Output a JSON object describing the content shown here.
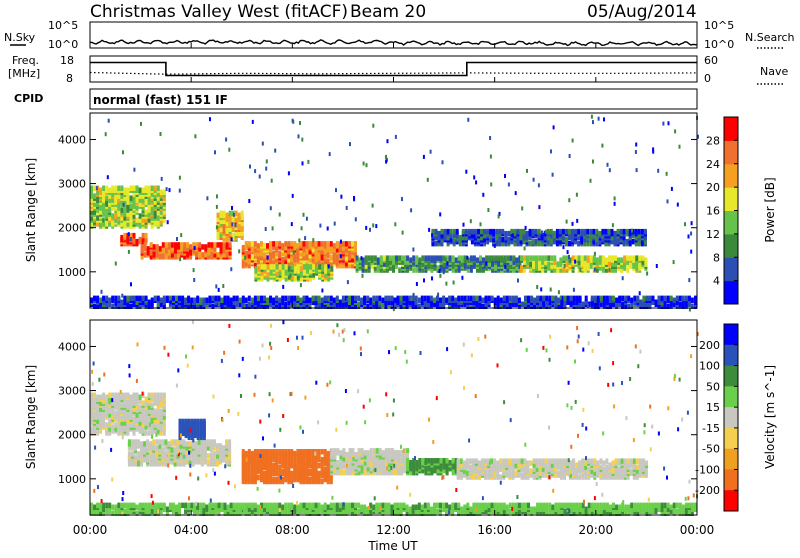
{
  "header": {
    "station": "Christmas Valley West (fitACF)",
    "beam": "Beam 20",
    "date": "05/Aug/2014"
  },
  "noise_panel": {
    "left_label": "N.Sky",
    "right_label": "N.Search",
    "left_ticks": [
      "10^5",
      "10^0"
    ],
    "right_ticks": [
      "10^5",
      "10^0"
    ]
  },
  "freq_panel": {
    "left_label_line1": "Freq.",
    "left_label_line2": "[MHz]",
    "right_label": "Nave",
    "left_ticks": [
      "18",
      "8"
    ],
    "right_ticks": [
      "60",
      "0"
    ]
  },
  "cpid_panel": {
    "label": "CPID",
    "mode_text": "normal (fast) 151 IF"
  },
  "chart_data": [
    {
      "type": "heatmap",
      "name": "power",
      "ylabel": "Slant Range [km]",
      "yticks": [
        1000,
        2000,
        3000,
        4000
      ],
      "ylim": [
        180,
        4600
      ],
      "colorbar": {
        "label": "Power [dB]",
        "ticks": [
          4,
          8,
          12,
          16,
          20,
          24,
          28
        ],
        "range": [
          0,
          32
        ],
        "colors": [
          "#0000ff",
          "#2c4fb3",
          "#3b8a3b",
          "#66c24a",
          "#e8e82a",
          "#f5a020",
          "#f07030",
          "#ff0000"
        ]
      },
      "bands": [
        {
          "t0": 0.0,
          "t1": 3.0,
          "r0": 2000,
          "r1": 2900,
          "level": 16
        },
        {
          "t0": 1.2,
          "t1": 2.2,
          "r0": 1600,
          "r1": 1800,
          "level": 28
        },
        {
          "t0": 2.0,
          "t1": 5.5,
          "r0": 1300,
          "r1": 1600,
          "level": 26
        },
        {
          "t0": 5.0,
          "t1": 6.0,
          "r0": 1700,
          "r1": 2300,
          "level": 20
        },
        {
          "t0": 6.0,
          "t1": 10.5,
          "r0": 1100,
          "r1": 1600,
          "level": 24
        },
        {
          "t0": 6.5,
          "t1": 9.5,
          "r0": 800,
          "r1": 1100,
          "level": 16
        },
        {
          "t0": 10.5,
          "t1": 12.5,
          "r0": 1000,
          "r1": 1300,
          "level": 12
        },
        {
          "t0": 12.5,
          "t1": 17.0,
          "r0": 1000,
          "r1": 1300,
          "level": 10
        },
        {
          "t0": 17.0,
          "t1": 22.0,
          "r0": 1000,
          "r1": 1300,
          "level": 16
        },
        {
          "t0": 13.5,
          "t1": 22.0,
          "r0": 1600,
          "r1": 1900,
          "level": 6
        },
        {
          "t0": 0.0,
          "t1": 24.0,
          "r0": 180,
          "r1": 400,
          "level": 4
        }
      ]
    },
    {
      "type": "heatmap",
      "name": "velocity",
      "ylabel": "Slant Range [km]",
      "yticks": [
        1000,
        2000,
        3000,
        4000
      ],
      "ylim": [
        180,
        4600
      ],
      "colorbar": {
        "label": "Velocity [m s^-1]",
        "ticks": [
          200,
          100,
          50,
          15,
          -15,
          -50,
          -100,
          -200
        ],
        "colors": [
          "#0000ff",
          "#2a52b8",
          "#3c8c3c",
          "#6ad04a",
          "#c8c8c0",
          "#f5d050",
          "#f0a020",
          "#f07020",
          "#ff0000"
        ]
      },
      "bands": [
        {
          "t0": 0.0,
          "t1": 3.0,
          "r0": 2000,
          "r1": 2900,
          "vel": 0
        },
        {
          "t0": 1.5,
          "t1": 5.5,
          "r0": 1300,
          "r1": 1800,
          "vel": 0
        },
        {
          "t0": 6.0,
          "t1": 9.5,
          "r0": 900,
          "r1": 1600,
          "vel": -120
        },
        {
          "t0": 9.5,
          "t1": 12.5,
          "r0": 1100,
          "r1": 1600,
          "vel": 0
        },
        {
          "t0": 12.5,
          "t1": 14.5,
          "r0": 1100,
          "r1": 1400,
          "vel": 60
        },
        {
          "t0": 14.5,
          "t1": 22.0,
          "r0": 1000,
          "r1": 1400,
          "vel": 0
        },
        {
          "t0": 3.5,
          "t1": 4.5,
          "r0": 1900,
          "r1": 2300,
          "vel": 150
        },
        {
          "t0": 0.0,
          "t1": 24.0,
          "r0": 180,
          "r1": 400,
          "vel": 40
        }
      ]
    }
  ],
  "xaxis": {
    "label": "Time UT",
    "ticks": [
      "00:00",
      "04:00",
      "08:00",
      "12:00",
      "16:00",
      "20:00",
      "00:00"
    ],
    "range_hours": [
      0,
      24
    ]
  },
  "freq_series": {
    "hours": [
      0,
      3.0,
      3.0,
      14.9,
      14.9,
      24
    ],
    "mhz": [
      15.5,
      15.5,
      10.5,
      10.5,
      15.5,
      15.5
    ]
  },
  "nave_series": {
    "hours": [
      0,
      3,
      6,
      9,
      12,
      15,
      18,
      21,
      24
    ],
    "values": [
      22,
      18,
      20,
      19,
      20,
      21,
      20,
      20,
      21
    ]
  }
}
